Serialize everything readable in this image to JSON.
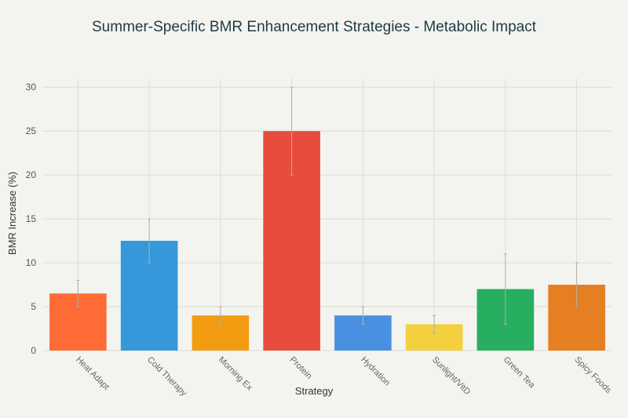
{
  "chart_data": {
    "type": "bar",
    "title": "Summer-Specific BMR Enhancement Strategies - Metabolic Impact",
    "xlabel": "Strategy",
    "ylabel": "BMR Increase (%)",
    "ylim": [
      0,
      31
    ],
    "yticks": [
      0,
      5,
      10,
      15,
      20,
      25,
      30
    ],
    "grid": true,
    "categories": [
      "Heat Adapt",
      "Cold Therapy",
      "Morning Ex",
      "Protein",
      "Hydration",
      "Sunlight/VitD",
      "Green Tea",
      "Spicy Foods"
    ],
    "values": [
      6.5,
      12.5,
      4,
      25,
      4,
      3,
      7,
      7.5
    ],
    "error_low": [
      5,
      10,
      3,
      20,
      3,
      2,
      3,
      5
    ],
    "error_high": [
      8,
      15,
      5,
      30,
      5,
      4,
      11,
      10
    ],
    "colors": [
      "#ff6b35",
      "#3498db",
      "#f39c12",
      "#e74c3c",
      "#4a90e2",
      "#f4d03f",
      "#27ae60",
      "#e67e22"
    ]
  }
}
